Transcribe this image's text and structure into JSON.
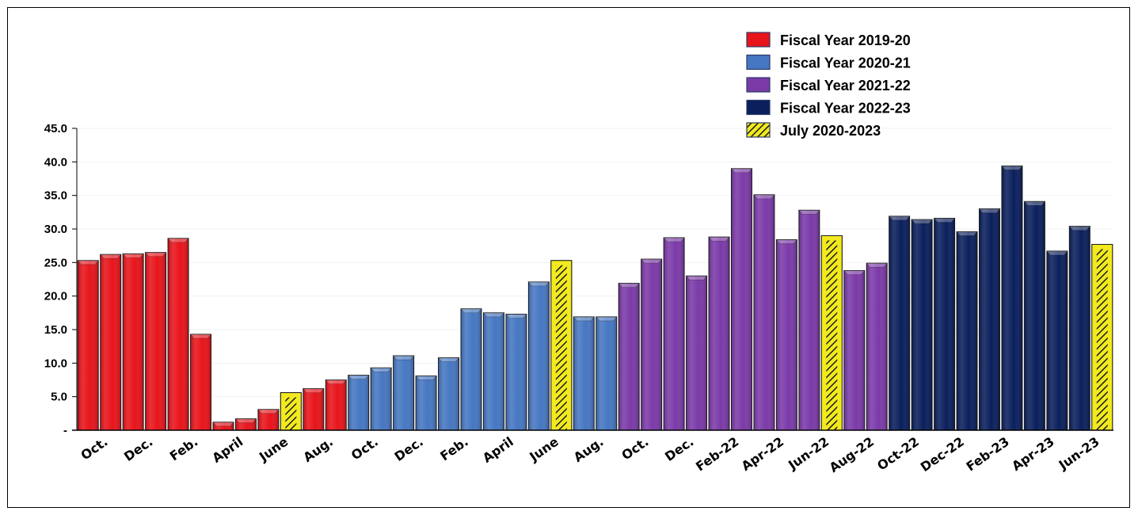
{
  "chart_data": {
    "type": "bar",
    "title": "",
    "xlabel": "",
    "ylabel": "",
    "ylim": [
      0,
      45
    ],
    "yticks": [
      "-",
      "5.0",
      "10.0",
      "15.0",
      "20.0",
      "25.0",
      "30.0",
      "35.0",
      "40.0",
      "45.0"
    ],
    "grid": false,
    "legend_position": "top-right",
    "legend": [
      {
        "label": "Fiscal Year 2019-20",
        "color": "#e8141b",
        "pattern": false
      },
      {
        "label": "Fiscal Year 2020-21",
        "color": "#4677c2",
        "pattern": false
      },
      {
        "label": "Fiscal Year 2021-22",
        "color": "#7b3aa8",
        "pattern": false
      },
      {
        "label": "Fiscal Year 2022-23",
        "color": "#0a1f5c",
        "pattern": false
      },
      {
        "label": "July 2020-2023",
        "color": "#f2ea1e",
        "pattern": true
      }
    ],
    "x_tick_labels": [
      "Oct.",
      "Dec.",
      "Feb.",
      "April",
      "June",
      "Aug.",
      "Oct.",
      "Dec.",
      "Feb.",
      "April",
      "June",
      "Aug.",
      "Oct.",
      "Dec.",
      "Feb-22",
      "Apr-22",
      "Jun-22",
      "Aug-22",
      "Oct-22",
      "Dec-22",
      "Feb-23",
      "Apr-23",
      "Jun-23"
    ],
    "series_index_order": [
      "Fiscal Year 2019-20",
      "Fiscal Year 2020-21",
      "Fiscal Year 2021-22",
      "Fiscal Year 2022-23",
      "July 2020-2023"
    ],
    "bars": [
      {
        "value": 25.3,
        "series": 0
      },
      {
        "value": 26.2,
        "series": 0
      },
      {
        "value": 26.3,
        "series": 0
      },
      {
        "value": 26.5,
        "series": 0
      },
      {
        "value": 28.6,
        "series": 0
      },
      {
        "value": 14.3,
        "series": 0
      },
      {
        "value": 1.2,
        "series": 0
      },
      {
        "value": 1.7,
        "series": 0
      },
      {
        "value": 3.1,
        "series": 0
      },
      {
        "value": 5.6,
        "series": 4
      },
      {
        "value": 6.2,
        "series": 0
      },
      {
        "value": 7.5,
        "series": 0
      },
      {
        "value": 8.2,
        "series": 1
      },
      {
        "value": 9.3,
        "series": 1
      },
      {
        "value": 11.1,
        "series": 1
      },
      {
        "value": 8.1,
        "series": 1
      },
      {
        "value": 10.8,
        "series": 1
      },
      {
        "value": 18.1,
        "series": 1
      },
      {
        "value": 17.5,
        "series": 1
      },
      {
        "value": 17.3,
        "series": 1
      },
      {
        "value": 22.1,
        "series": 1
      },
      {
        "value": 25.3,
        "series": 4
      },
      {
        "value": 16.9,
        "series": 1
      },
      {
        "value": 16.9,
        "series": 1
      },
      {
        "value": 21.9,
        "series": 2
      },
      {
        "value": 25.5,
        "series": 2
      },
      {
        "value": 28.7,
        "series": 2
      },
      {
        "value": 23.0,
        "series": 2
      },
      {
        "value": 28.8,
        "series": 2
      },
      {
        "value": 39.0,
        "series": 2
      },
      {
        "value": 35.1,
        "series": 2
      },
      {
        "value": 28.4,
        "series": 2
      },
      {
        "value": 32.8,
        "series": 2
      },
      {
        "value": 29.0,
        "series": 4
      },
      {
        "value": 23.8,
        "series": 2
      },
      {
        "value": 24.9,
        "series": 2
      },
      {
        "value": 31.9,
        "series": 3
      },
      {
        "value": 31.4,
        "series": 3
      },
      {
        "value": 31.6,
        "series": 3
      },
      {
        "value": 29.6,
        "series": 3
      },
      {
        "value": 33.0,
        "series": 3
      },
      {
        "value": 39.4,
        "series": 3
      },
      {
        "value": 34.1,
        "series": 3
      },
      {
        "value": 26.7,
        "series": 3
      },
      {
        "value": 30.4,
        "series": 3
      },
      {
        "value": 27.7,
        "series": 4
      }
    ]
  }
}
